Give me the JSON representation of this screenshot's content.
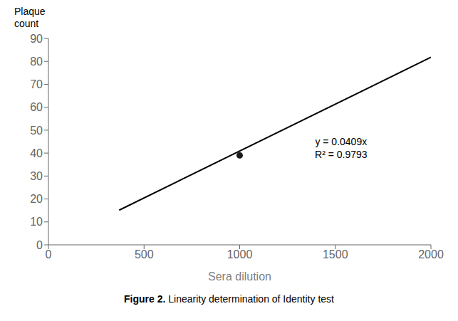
{
  "chart_data": {
    "type": "scatter",
    "xlabel": "Sera dilution",
    "ylabel": "Plaque\ncount",
    "caption": [
      {
        "text": "Figure 2.",
        "bold": true
      },
      {
        "text": "Linearity determination of Identity test",
        "bold": false
      }
    ],
    "xlim": [
      0,
      2000
    ],
    "ylim": [
      0,
      90
    ],
    "xticks": [
      0,
      500,
      1000,
      1500,
      2000
    ],
    "yticks": [
      0,
      10,
      20,
      30,
      40,
      50,
      60,
      70,
      80,
      90
    ],
    "grid": false,
    "series": [
      {
        "type": "line",
        "color": "#000000",
        "x": [
          370,
          2000
        ],
        "values": [
          15.133,
          81.8
        ]
      },
      {
        "type": "scatter",
        "color": "#1a1a1a",
        "x": [
          1000
        ],
        "values": [
          39
        ]
      }
    ],
    "annotations": [
      {
        "text": [
          "y = 0.0409x",
          "R² = 0.9793"
        ],
        "x": 1530,
        "y": 42
      }
    ]
  }
}
